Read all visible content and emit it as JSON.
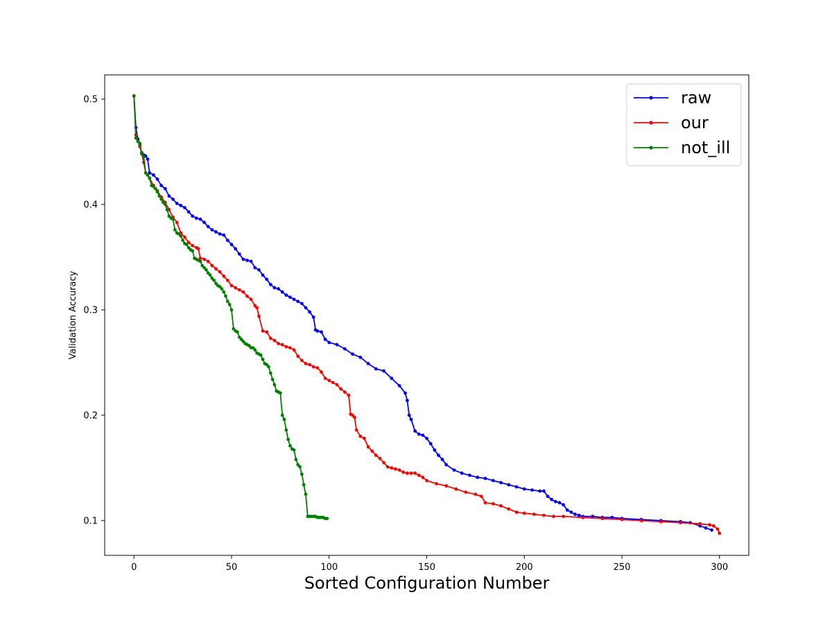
{
  "chart_data": {
    "type": "line",
    "title": "",
    "xlabel": "Sorted Configuration Number",
    "ylabel": "Validation Accuracy",
    "xlim": [
      -15,
      315
    ],
    "ylim": [
      0.067,
      0.523
    ],
    "xticks": [
      0,
      50,
      100,
      150,
      200,
      250,
      300
    ],
    "yticks": [
      0.1,
      0.2,
      0.3,
      0.4,
      0.5
    ],
    "xtick_labels": [
      "0",
      "50",
      "100",
      "150",
      "200",
      "250",
      "300"
    ],
    "ytick_labels": [
      "0.1",
      "0.2",
      "0.3",
      "0.4",
      "0.5"
    ],
    "grid": false,
    "legend_position": "top-right",
    "markers": "dot",
    "series": [
      {
        "name": "raw",
        "color": "#0000ff",
        "x": [
          0,
          1,
          2,
          3,
          4,
          5,
          6,
          7,
          8,
          10,
          12,
          14,
          16,
          18,
          20,
          22,
          24,
          26,
          28,
          30,
          32,
          34,
          36,
          38,
          40,
          42,
          44,
          46,
          48,
          50,
          52,
          54,
          56,
          58,
          60,
          62,
          64,
          66,
          68,
          70,
          72,
          74,
          76,
          78,
          80,
          82,
          84,
          86,
          88,
          90,
          92,
          93,
          94,
          96,
          98,
          100,
          104,
          108,
          112,
          116,
          120,
          124,
          128,
          132,
          136,
          139,
          140,
          141,
          142,
          144,
          146,
          148,
          150,
          152,
          154,
          156,
          158,
          160,
          164,
          168,
          172,
          176,
          180,
          184,
          188,
          192,
          196,
          200,
          204,
          208,
          210,
          212,
          214,
          216,
          218,
          220,
          222,
          224,
          226,
          228,
          230,
          235,
          240,
          245,
          250,
          260,
          270,
          280,
          285,
          290,
          293,
          296
        ],
        "y": [
          0.503,
          0.473,
          0.462,
          0.456,
          0.449,
          0.447,
          0.446,
          0.443,
          0.43,
          0.428,
          0.424,
          0.418,
          0.415,
          0.408,
          0.405,
          0.401,
          0.399,
          0.397,
          0.393,
          0.389,
          0.387,
          0.386,
          0.383,
          0.379,
          0.376,
          0.374,
          0.372,
          0.371,
          0.366,
          0.362,
          0.358,
          0.353,
          0.348,
          0.347,
          0.346,
          0.34,
          0.338,
          0.333,
          0.329,
          0.324,
          0.321,
          0.32,
          0.317,
          0.314,
          0.312,
          0.31,
          0.308,
          0.306,
          0.302,
          0.298,
          0.293,
          0.281,
          0.28,
          0.279,
          0.272,
          0.269,
          0.267,
          0.263,
          0.258,
          0.255,
          0.249,
          0.244,
          0.242,
          0.235,
          0.228,
          0.221,
          0.214,
          0.2,
          0.196,
          0.185,
          0.182,
          0.181,
          0.178,
          0.173,
          0.167,
          0.162,
          0.158,
          0.153,
          0.148,
          0.145,
          0.143,
          0.141,
          0.14,
          0.138,
          0.136,
          0.134,
          0.132,
          0.13,
          0.129,
          0.128,
          0.128,
          0.123,
          0.12,
          0.118,
          0.117,
          0.115,
          0.11,
          0.108,
          0.106,
          0.105,
          0.104,
          0.104,
          0.103,
          0.103,
          0.102,
          0.101,
          0.1,
          0.099,
          0.098,
          0.095,
          0.093,
          0.091
        ]
      },
      {
        "name": "our",
        "color": "#ff0000",
        "x": [
          0,
          1,
          2,
          3,
          4,
          5,
          6,
          7,
          8,
          10,
          12,
          14,
          16,
          18,
          20,
          22,
          24,
          26,
          28,
          30,
          32,
          33,
          34,
          36,
          38,
          40,
          42,
          44,
          46,
          48,
          50,
          52,
          54,
          56,
          58,
          60,
          62,
          63,
          64,
          66,
          68,
          70,
          72,
          74,
          76,
          78,
          80,
          82,
          84,
          86,
          88,
          90,
          92,
          94,
          96,
          98,
          100,
          102,
          104,
          106,
          108,
          110,
          111,
          112,
          113,
          114,
          116,
          118,
          120,
          122,
          124,
          126,
          128,
          130,
          132,
          134,
          136,
          138,
          140,
          142,
          144,
          146,
          148,
          150,
          155,
          160,
          165,
          170,
          175,
          178,
          180,
          184,
          188,
          192,
          196,
          200,
          205,
          210,
          215,
          220,
          230,
          240,
          250,
          260,
          270,
          280,
          290,
          295,
          297,
          299,
          300
        ],
        "y": [
          0.503,
          0.466,
          0.46,
          0.455,
          0.448,
          0.44,
          0.43,
          0.428,
          0.425,
          0.418,
          0.413,
          0.407,
          0.402,
          0.395,
          0.388,
          0.383,
          0.373,
          0.369,
          0.364,
          0.361,
          0.359,
          0.358,
          0.349,
          0.348,
          0.346,
          0.342,
          0.339,
          0.336,
          0.332,
          0.328,
          0.323,
          0.321,
          0.319,
          0.317,
          0.313,
          0.31,
          0.304,
          0.302,
          0.294,
          0.28,
          0.279,
          0.273,
          0.271,
          0.268,
          0.267,
          0.265,
          0.264,
          0.262,
          0.256,
          0.252,
          0.249,
          0.248,
          0.246,
          0.245,
          0.241,
          0.235,
          0.233,
          0.231,
          0.229,
          0.225,
          0.222,
          0.219,
          0.201,
          0.2,
          0.198,
          0.186,
          0.18,
          0.178,
          0.17,
          0.166,
          0.162,
          0.159,
          0.155,
          0.151,
          0.15,
          0.149,
          0.148,
          0.146,
          0.145,
          0.145,
          0.145,
          0.143,
          0.141,
          0.138,
          0.135,
          0.133,
          0.13,
          0.127,
          0.125,
          0.123,
          0.117,
          0.116,
          0.114,
          0.111,
          0.108,
          0.107,
          0.106,
          0.105,
          0.104,
          0.104,
          0.103,
          0.102,
          0.101,
          0.1,
          0.099,
          0.098,
          0.097,
          0.096,
          0.095,
          0.092,
          0.088
        ]
      },
      {
        "name": "not_ill",
        "color": "#008000",
        "x": [
          0,
          1,
          2,
          3,
          4,
          5,
          6,
          7,
          8,
          9,
          10,
          11,
          12,
          13,
          14,
          15,
          16,
          17,
          18,
          19,
          20,
          21,
          22,
          23,
          24,
          25,
          26,
          27,
          28,
          29,
          30,
          31,
          32,
          33,
          34,
          35,
          36,
          37,
          38,
          39,
          40,
          41,
          42,
          43,
          44,
          45,
          46,
          47,
          48,
          49,
          50,
          51,
          52,
          53,
          54,
          55,
          56,
          57,
          58,
          59,
          60,
          61,
          62,
          63,
          64,
          65,
          66,
          67,
          68,
          69,
          70,
          71,
          72,
          73,
          74,
          75,
          76,
          77,
          78,
          79,
          80,
          81,
          82,
          83,
          84,
          85,
          86,
          87,
          88,
          89,
          90,
          91,
          92,
          93,
          94,
          95,
          96,
          97,
          98,
          99
        ],
        "y": [
          0.503,
          0.463,
          0.46,
          0.458,
          0.448,
          0.445,
          0.43,
          0.428,
          0.425,
          0.418,
          0.417,
          0.415,
          0.412,
          0.408,
          0.405,
          0.402,
          0.4,
          0.395,
          0.389,
          0.387,
          0.386,
          0.376,
          0.373,
          0.372,
          0.37,
          0.366,
          0.363,
          0.362,
          0.359,
          0.357,
          0.356,
          0.349,
          0.348,
          0.347,
          0.346,
          0.342,
          0.34,
          0.338,
          0.335,
          0.333,
          0.33,
          0.328,
          0.325,
          0.323,
          0.322,
          0.32,
          0.317,
          0.313,
          0.308,
          0.305,
          0.3,
          0.282,
          0.28,
          0.279,
          0.274,
          0.272,
          0.27,
          0.268,
          0.267,
          0.266,
          0.264,
          0.264,
          0.262,
          0.259,
          0.258,
          0.257,
          0.253,
          0.249,
          0.248,
          0.246,
          0.24,
          0.234,
          0.229,
          0.223,
          0.222,
          0.221,
          0.2,
          0.196,
          0.186,
          0.177,
          0.171,
          0.168,
          0.167,
          0.158,
          0.153,
          0.151,
          0.144,
          0.134,
          0.125,
          0.104,
          0.104,
          0.104,
          0.104,
          0.104,
          0.103,
          0.103,
          0.103,
          0.103,
          0.102,
          0.102
        ]
      }
    ]
  }
}
